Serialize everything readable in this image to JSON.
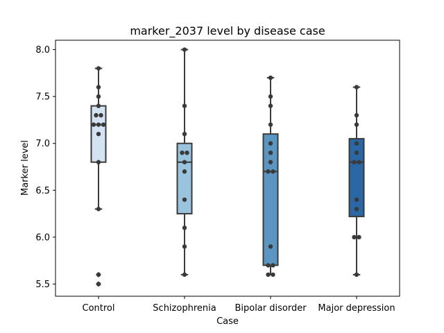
{
  "chart_data": {
    "type": "boxplot",
    "title": "marker_2037 level by disease case",
    "xlabel": "Case",
    "ylabel": "Marker level",
    "ylim": [
      5.37,
      8.1
    ],
    "yticks": [
      5.5,
      6.0,
      6.5,
      7.0,
      7.5,
      8.0
    ],
    "ytick_labels": [
      "5.5",
      "6.0",
      "6.5",
      "7.0",
      "7.5",
      "8.0"
    ],
    "categories": [
      "Control",
      "Schizophrenia",
      "Bipolar disorder",
      "Major depression"
    ],
    "colors": [
      "#d4e3f2",
      "#9ac3de",
      "#5b96c2",
      "#2a67a4"
    ],
    "boxes": [
      {
        "category": "Control",
        "whisker_low": 6.3,
        "q1": 6.8,
        "median": 7.2,
        "q3": 7.4,
        "whisker_high": 7.8,
        "outliers": [
          5.6,
          5.5
        ]
      },
      {
        "category": "Schizophrenia",
        "whisker_low": 5.6,
        "q1": 6.25,
        "median": 6.8,
        "q3": 7.0,
        "whisker_high": 8.0,
        "outliers": []
      },
      {
        "category": "Bipolar disorder",
        "whisker_low": 5.6,
        "q1": 5.7,
        "median": 6.7,
        "q3": 7.1,
        "whisker_high": 7.7,
        "outliers": []
      },
      {
        "category": "Major depression",
        "whisker_low": 5.6,
        "q1": 6.22,
        "median": 6.8,
        "q3": 7.05,
        "whisker_high": 7.6,
        "outliers": []
      }
    ],
    "points": [
      [
        7.8,
        7.6,
        7.5,
        7.4,
        7.3,
        7.3,
        7.2,
        7.2,
        7.2,
        7.1,
        6.8,
        6.3,
        5.6,
        5.5
      ],
      [
        8.0,
        7.4,
        7.1,
        6.9,
        6.9,
        6.8,
        6.7,
        6.4,
        6.1,
        5.9,
        5.6
      ],
      [
        7.7,
        7.5,
        7.4,
        7.2,
        7.0,
        6.9,
        6.8,
        6.7,
        6.7,
        5.9,
        5.7,
        5.7,
        5.6,
        5.6
      ],
      [
        7.6,
        7.3,
        7.2,
        7.0,
        6.9,
        6.8,
        6.8,
        6.4,
        6.3,
        6.0,
        6.0,
        5.6
      ]
    ]
  }
}
